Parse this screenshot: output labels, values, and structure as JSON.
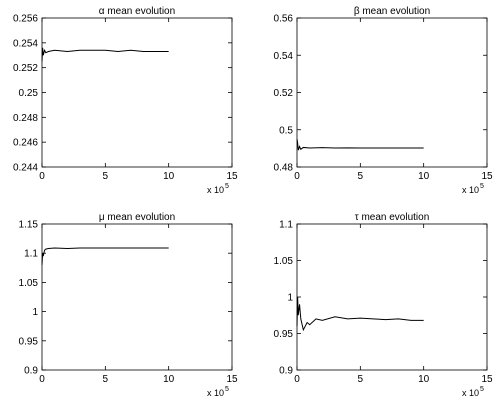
{
  "chart_data": [
    {
      "type": "line",
      "title": "α mean evolution",
      "x_multiplier": "x 10",
      "x_exponent": "5",
      "x": [
        0,
        0.05,
        0.1,
        0.2,
        0.3,
        0.5,
        1,
        2,
        3,
        4,
        5,
        6,
        7,
        8,
        9,
        10
      ],
      "values": [
        0.2525,
        0.2536,
        0.253,
        0.2534,
        0.2532,
        0.2533,
        0.2534,
        0.2533,
        0.2534,
        0.2534,
        0.2534,
        0.2533,
        0.2534,
        0.2533,
        0.2533,
        0.2533
      ],
      "color": "#000000",
      "xlim": [
        0,
        15
      ],
      "xticks": [
        0,
        5,
        10,
        15
      ],
      "ylim": [
        0.244,
        0.256
      ],
      "yticks": [
        0.244,
        0.246,
        0.248,
        0.25,
        0.252,
        0.254,
        0.256
      ]
    },
    {
      "type": "line",
      "title": "β mean evolution",
      "x_multiplier": "x 10",
      "x_exponent": "5",
      "x": [
        0,
        0.05,
        0.1,
        0.2,
        0.3,
        0.5,
        1,
        2,
        3,
        4,
        5,
        6,
        7,
        8,
        9,
        10
      ],
      "values": [
        0.495,
        0.493,
        0.489,
        0.491,
        0.4895,
        0.4905,
        0.4902,
        0.4904,
        0.4902,
        0.4903,
        0.4902,
        0.4902,
        0.4902,
        0.4902,
        0.4902,
        0.4902
      ],
      "color": "#000000",
      "xlim": [
        0,
        15
      ],
      "xticks": [
        0,
        5,
        10,
        15
      ],
      "ylim": [
        0.48,
        0.56
      ],
      "yticks": [
        0.48,
        0.5,
        0.52,
        0.54,
        0.56
      ]
    },
    {
      "type": "line",
      "title": "μ mean evolution",
      "x_multiplier": "x 10",
      "x_exponent": "5",
      "x": [
        0,
        0.05,
        0.1,
        0.2,
        0.3,
        0.5,
        1,
        2,
        3,
        4,
        5,
        6,
        7,
        8,
        9,
        10
      ],
      "values": [
        1.08,
        1.1,
        1.095,
        1.105,
        1.107,
        1.108,
        1.109,
        1.108,
        1.109,
        1.109,
        1.109,
        1.109,
        1.109,
        1.109,
        1.109,
        1.109
      ],
      "color": "#000000",
      "xlim": [
        0,
        15
      ],
      "xticks": [
        0,
        5,
        10,
        15
      ],
      "ylim": [
        0.9,
        1.15
      ],
      "yticks": [
        0.9,
        0.95,
        1,
        1.05,
        1.1,
        1.15
      ]
    },
    {
      "type": "line",
      "title": "τ mean evolution",
      "x_multiplier": "x 10",
      "x_exponent": "5",
      "x": [
        0,
        0.05,
        0.1,
        0.2,
        0.3,
        0.5,
        0.8,
        1,
        1.5,
        2,
        3,
        4,
        5,
        6,
        7,
        8,
        9,
        10
      ],
      "values": [
        0.96,
        1.0,
        0.975,
        0.99,
        0.97,
        0.955,
        0.965,
        0.962,
        0.97,
        0.968,
        0.973,
        0.97,
        0.971,
        0.97,
        0.969,
        0.97,
        0.968,
        0.968
      ],
      "color": "#000000",
      "xlim": [
        0,
        15
      ],
      "xticks": [
        0,
        5,
        10,
        15
      ],
      "ylim": [
        0.9,
        1.1
      ],
      "yticks": [
        0.9,
        0.95,
        1,
        1.05,
        1.1
      ]
    }
  ]
}
